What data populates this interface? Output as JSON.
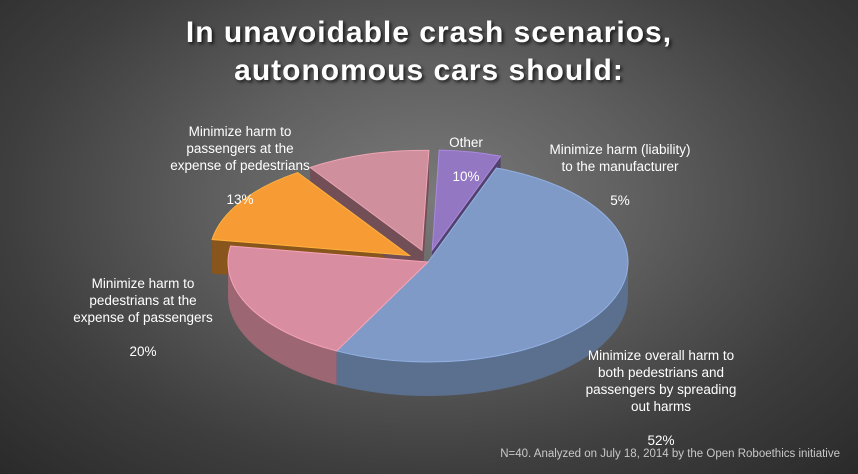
{
  "chart_data": {
    "type": "pie",
    "title": "In unavoidable crash scenarios,\nautonomous cars should:",
    "slices": [
      {
        "label": "Minimize overall harm to\nboth pedestrians and\npassengers by spreading\nout harms",
        "value": 52,
        "value_label": "52%",
        "color": "#7f9ac6",
        "exploded": false
      },
      {
        "label": "Minimize harm to\npedestrians at the\nexpense of passengers",
        "value": 20,
        "value_label": "20%",
        "color": "#d88ea0",
        "exploded": false
      },
      {
        "label": "Minimize harm to\npassengers at the\nexpense of pedestrians",
        "value": 13,
        "value_label": "13%",
        "color": "#f79b35",
        "exploded": true
      },
      {
        "label": "Other",
        "value": 10,
        "value_label": "10%",
        "color": "#cf8f9c",
        "exploded": true
      },
      {
        "label": "Minimize harm (liability)\nto the manufacturer",
        "value": 5,
        "value_label": "5%",
        "color": "#9477c3",
        "exploded": true
      }
    ],
    "footnote": "N=40. Analyzed on July 18, 2014 by the Open Roboethics initiative"
  }
}
